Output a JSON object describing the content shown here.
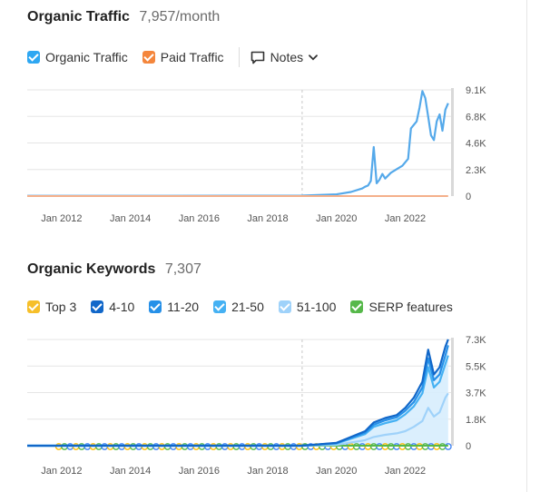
{
  "organic_traffic": {
    "title": "Organic Traffic",
    "value": "7,957/month",
    "legend": [
      {
        "label": "Organic Traffic",
        "color": "#2ea7f2",
        "icon": "checkbox-checked"
      },
      {
        "label": "Paid Traffic",
        "color": "#f4863c",
        "icon": "checkbox-checked"
      }
    ],
    "notes_label": "Notes",
    "colors": {
      "organic_line": "#55a9ea",
      "paid_line": "#f4b08a",
      "grid": "#e5e5e5"
    }
  },
  "organic_keywords": {
    "title": "Organic Keywords",
    "value": "7,307",
    "legend": [
      {
        "label": "Top 3",
        "color": "#f6bf2a",
        "icon": "checkbox-checked"
      },
      {
        "label": "4-10",
        "color": "#1167c9",
        "icon": "checkbox-checked"
      },
      {
        "label": "11-20",
        "color": "#2690e8",
        "icon": "checkbox-checked"
      },
      {
        "label": "21-50",
        "color": "#45b1f3",
        "icon": "checkbox-checked"
      },
      {
        "label": "51-100",
        "color": "#9fd2fa",
        "icon": "checkbox-checked"
      },
      {
        "label": "SERP features",
        "color": "#56b84a",
        "icon": "checkbox-checked"
      }
    ],
    "colors": {
      "area_fill": "#d7edfd",
      "serp_line": "#56b84a"
    }
  },
  "chart_data": [
    {
      "type": "line",
      "x_ticks": [
        "Jan 2012",
        "Jan 2014",
        "Jan 2016",
        "Jan 2018",
        "Jan 2020",
        "Jan 2022"
      ],
      "y_ticks": [
        "0",
        "2.3K",
        "4.6K",
        "6.8K",
        "9.1K"
      ],
      "ylim": [
        0,
        9100
      ],
      "xlim": [
        "Jan 2011",
        "May 2023"
      ],
      "annotation_line_at": "Jan 2019",
      "grid": true,
      "legend_position": "top-left",
      "series": [
        {
          "name": "Organic Traffic",
          "points": [
            [
              "Jan 2011",
              20
            ],
            [
              "Jan 2013",
              20
            ],
            [
              "Jan 2015",
              25
            ],
            [
              "Jan 2017",
              30
            ],
            [
              "Jan 2019",
              40
            ],
            [
              "Jan 2020",
              150
            ],
            [
              "Jun 2020",
              350
            ],
            [
              "Oct 2020",
              650
            ],
            [
              "Nov 2020",
              800
            ],
            [
              "Dec 2020",
              900
            ],
            [
              "Jan 2021",
              1300
            ],
            [
              "Feb 2021",
              4200
            ],
            [
              "Mar 2021",
              1100
            ],
            [
              "Apr 2021",
              1400
            ],
            [
              "May 2021",
              1900
            ],
            [
              "Jun 2021",
              1500
            ],
            [
              "Aug 2021",
              2000
            ],
            [
              "Oct 2021",
              2300
            ],
            [
              "Dec 2021",
              2600
            ],
            [
              "Feb 2022",
              3200
            ],
            [
              "Mar 2022",
              5800
            ],
            [
              "May 2022",
              6400
            ],
            [
              "Jun 2022",
              7600
            ],
            [
              "Jul 2022",
              9000
            ],
            [
              "Aug 2022",
              8400
            ],
            [
              "Sep 2022",
              6800
            ],
            [
              "Oct 2022",
              5200
            ],
            [
              "Nov 2022",
              4800
            ],
            [
              "Dec 2022",
              6400
            ],
            [
              "Jan 2023",
              7000
            ],
            [
              "Feb 2023",
              5600
            ],
            [
              "Mar 2023",
              7400
            ],
            [
              "Apr 2023",
              7957
            ]
          ]
        },
        {
          "name": "Paid Traffic",
          "points": [
            [
              "Jan 2011",
              0
            ],
            [
              "Apr 2023",
              0
            ]
          ]
        }
      ]
    },
    {
      "type": "area",
      "x_ticks": [
        "Jan 2012",
        "Jan 2014",
        "Jan 2016",
        "Jan 2018",
        "Jan 2020",
        "Jan 2022"
      ],
      "y_ticks": [
        "0",
        "1.8K",
        "3.7K",
        "5.5K",
        "7.3K"
      ],
      "ylim": [
        0,
        7300
      ],
      "xlim": [
        "Jan 2011",
        "May 2023"
      ],
      "annotation_line_at": "Jan 2019",
      "grid": true,
      "legend_position": "top-left",
      "series": [
        {
          "name": "4-10",
          "points": [
            [
              "Jan 2011",
              0
            ],
            [
              "Jan 2019",
              0
            ],
            [
              "Jan 2020",
              200
            ],
            [
              "Jun 2020",
              600
            ],
            [
              "Nov 2020",
              1000
            ],
            [
              "Feb 2021",
              1600
            ],
            [
              "Jun 2021",
              1900
            ],
            [
              "Oct 2021",
              2100
            ],
            [
              "Jan 2022",
              2600
            ],
            [
              "Apr 2022",
              3300
            ],
            [
              "Jul 2022",
              4400
            ],
            [
              "Sep 2022",
              6600
            ],
            [
              "Nov 2022",
              4900
            ],
            [
              "Jan 2023",
              5400
            ],
            [
              "Mar 2023",
              6800
            ],
            [
              "Apr 2023",
              7307
            ]
          ]
        },
        {
          "name": "11-20",
          "points": [
            [
              "Jan 2011",
              0
            ],
            [
              "Jan 2019",
              0
            ],
            [
              "Jan 2020",
              180
            ],
            [
              "Jun 2020",
              550
            ],
            [
              "Nov 2020",
              900
            ],
            [
              "Feb 2021",
              1450
            ],
            [
              "Jun 2021",
              1750
            ],
            [
              "Oct 2021",
              1950
            ],
            [
              "Jan 2022",
              2400
            ],
            [
              "Apr 2022",
              3000
            ],
            [
              "Jul 2022",
              4000
            ],
            [
              "Sep 2022",
              6000
            ],
            [
              "Nov 2022",
              4500
            ],
            [
              "Jan 2023",
              4900
            ],
            [
              "Mar 2023",
              6200
            ],
            [
              "Apr 2023",
              6900
            ]
          ]
        },
        {
          "name": "21-50",
          "points": [
            [
              "Jan 2011",
              0
            ],
            [
              "Jan 2019",
              0
            ],
            [
              "Jan 2020",
              150
            ],
            [
              "Jun 2020",
              480
            ],
            [
              "Nov 2020",
              800
            ],
            [
              "Feb 2021",
              1300
            ],
            [
              "Jun 2021",
              1550
            ],
            [
              "Oct 2021",
              1750
            ],
            [
              "Jan 2022",
              2150
            ],
            [
              "Apr 2022",
              2700
            ],
            [
              "Jul 2022",
              3600
            ],
            [
              "Sep 2022",
              5400
            ],
            [
              "Nov 2022",
              4000
            ],
            [
              "Jan 2023",
              4400
            ],
            [
              "Mar 2023",
              5600
            ],
            [
              "Apr 2023",
              6200
            ]
          ]
        },
        {
          "name": "51-100",
          "points": [
            [
              "Jan 2011",
              0
            ],
            [
              "Jan 2019",
              0
            ],
            [
              "Jan 2020",
              60
            ],
            [
              "Jun 2020",
              220
            ],
            [
              "Nov 2020",
              380
            ],
            [
              "Feb 2021",
              600
            ],
            [
              "Jun 2021",
              750
            ],
            [
              "Oct 2021",
              850
            ],
            [
              "Jan 2022",
              1000
            ],
            [
              "Apr 2022",
              1300
            ],
            [
              "Jul 2022",
              1700
            ],
            [
              "Sep 2022",
              2600
            ],
            [
              "Nov 2022",
              2000
            ],
            [
              "Jan 2023",
              2300
            ],
            [
              "Mar 2023",
              3300
            ],
            [
              "Apr 2023",
              3600
            ]
          ]
        },
        {
          "name": "SERP features",
          "points": [
            [
              "Jan 2011",
              0
            ],
            [
              "Apr 2023",
              0
            ]
          ]
        }
      ]
    }
  ]
}
